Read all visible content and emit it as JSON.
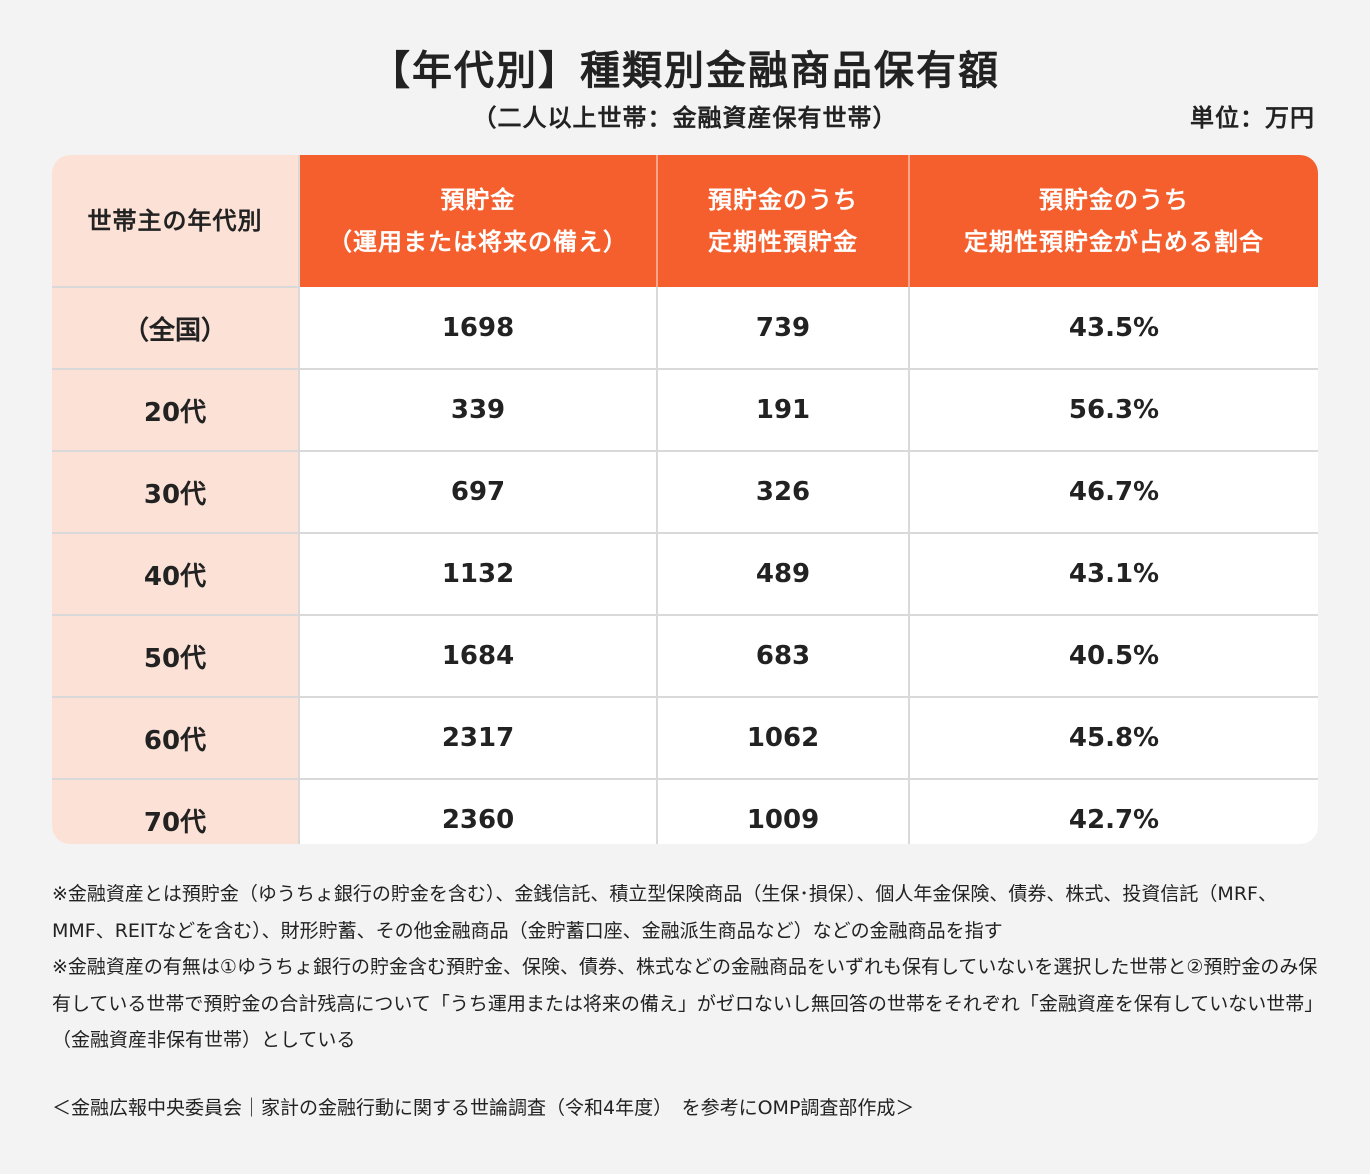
{
  "title": "【年代別】種類別金融商品保有額",
  "subtitle": "（二人以上世帯：金融資産保有世帯）",
  "unit": "単位：万円",
  "table": {
    "headers": [
      "世帯主の年代別",
      "預貯金\n（運用または将来の備え）",
      "預貯金のうち\n定期性預貯金",
      "預貯金のうち\n定期性預貯金が占める割合"
    ],
    "rows": [
      [
        "（全国）",
        "1698",
        "739",
        "43.5%"
      ],
      [
        "20代",
        "339",
        "191",
        "56.3%"
      ],
      [
        "30代",
        "697",
        "326",
        "46.7%"
      ],
      [
        "40代",
        "1132",
        "489",
        "43.1%"
      ],
      [
        "50代",
        "1684",
        "683",
        "40.5%"
      ],
      [
        "60代",
        "2317",
        "1062",
        "45.8%"
      ],
      [
        "70代",
        "2360",
        "1009",
        "42.7%"
      ]
    ]
  },
  "notes": [
    "※金融資産とは預貯金（ゆうちょ銀行の貯金を含む）、金銭信託、積立型保険商品（生保･損保）、個人年金保険、債券、株式、投資信託（MRF、MMF、REITなどを含む）、財形貯蓄、その他金融商品（金貯蓄口座、金融派生商品など）などの金融商品を指す",
    "※金融資産の有無は①ゆうちょ銀行の貯金含む預貯金、保険、債券、株式などの金融商品をいずれも保有していないを選択した世帯と②預貯金のみ保有している世帯で預貯金の合計残高について「うち運用または将来の備え」がゼロないし無回答の世帯をそれぞれ「金融資産を保有していない世帯」（金融資産非保有世帯）としている"
  ],
  "source": "＜金融広報中央委員会｜家計の金融行動に関する世論調査（令和4年度）　を参考にOMP調査部作成＞",
  "colors": {
    "accent": "#f55f2d",
    "label_bg": "#fbe1d6",
    "page_bg": "#f3f3f3"
  }
}
